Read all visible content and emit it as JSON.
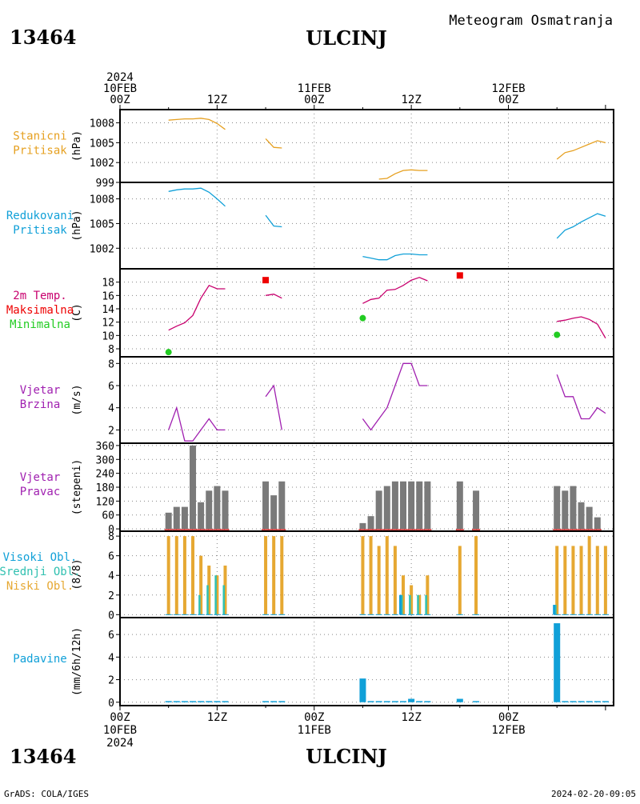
{
  "header": {
    "top_right": "Meteogram Osmatranja",
    "station_id": "13464",
    "station_name": "ULCINJ",
    "bottom_left": "GrADS: COLA/IGES",
    "bottom_right": "2024-02-20-09:05"
  },
  "time_axis": {
    "top_labels": [
      {
        "h": 0,
        "lines": [
          "2024",
          "10FEB",
          "00Z"
        ]
      },
      {
        "h": 12,
        "lines": [
          "12Z"
        ]
      },
      {
        "h": 24,
        "lines": [
          "11FEB",
          "00Z"
        ]
      },
      {
        "h": 36,
        "lines": [
          "12Z"
        ]
      },
      {
        "h": 48,
        "lines": [
          "12FEB",
          "00Z"
        ]
      }
    ],
    "bottom_labels": [
      {
        "h": 0,
        "lines": [
          "00Z",
          "10FEB",
          "2024"
        ]
      },
      {
        "h": 12,
        "lines": [
          "12Z"
        ]
      },
      {
        "h": 24,
        "lines": [
          "00Z",
          "11FEB"
        ]
      },
      {
        "h": 36,
        "lines": [
          "12Z"
        ]
      },
      {
        "h": 48,
        "lines": [
          "00Z",
          "12FEB"
        ]
      }
    ]
  },
  "colors": {
    "pressure": "#e6a020",
    "reduced": "#10a0d8",
    "temp": "#c8006e",
    "tmax": "#ee0000",
    "tmin": "#22cc22",
    "wind": "#a020b0",
    "bars": "#7a7a7a",
    "low_cloud": "#e6a832",
    "mid_cloud": "#30c0b0",
    "high_cloud": "#10a0d8",
    "precip": "#10a0d8"
  },
  "chart_data": [
    {
      "type": "line",
      "panel": "station_pressure",
      "left_labels": [
        "Stanicni",
        "Pritisak"
      ],
      "ylabel": "(hPa)",
      "yticks": [
        999,
        1002,
        1005,
        1008
      ],
      "ylim": [
        999,
        1010
      ],
      "series": [
        {
          "x": [
            6,
            7,
            8,
            9,
            10,
            11,
            12,
            13
          ],
          "y": [
            1008.4,
            1008.5,
            1008.6,
            1008.6,
            1008.7,
            1008.5,
            1007.9,
            1007.0
          ]
        },
        {
          "x": [
            18,
            19,
            20
          ],
          "y": [
            1005.6,
            1004.3,
            1004.2
          ]
        },
        {
          "x": [
            32,
            33,
            34,
            35,
            36,
            37,
            38
          ],
          "y": [
            999.5,
            999.6,
            1000.3,
            1000.8,
            1000.9,
            1000.8,
            1000.8
          ]
        },
        {
          "x": [
            54,
            55,
            56,
            57,
            58,
            59,
            60
          ],
          "y": [
            1002.5,
            1003.5,
            1003.8,
            1004.3,
            1004.8,
            1005.3,
            1005.0
          ]
        }
      ]
    },
    {
      "type": "line",
      "panel": "reduced_pressure",
      "left_labels": [
        "Redukovani",
        "Pritisak"
      ],
      "ylabel": "(hPa)",
      "yticks": [
        1002,
        1005,
        1008
      ],
      "ylim": [
        999.5,
        1010
      ],
      "series": [
        {
          "x": [
            6,
            7,
            8,
            9,
            10,
            11,
            12,
            13
          ],
          "y": [
            1008.9,
            1009.1,
            1009.2,
            1009.2,
            1009.3,
            1008.8,
            1008.0,
            1007.1
          ]
        },
        {
          "x": [
            18,
            19,
            20
          ],
          "y": [
            1006.0,
            1004.7,
            1004.6
          ]
        },
        {
          "x": [
            30,
            31,
            32,
            33,
            34,
            35,
            36,
            37,
            38
          ],
          "y": [
            1001.0,
            1000.8,
            1000.6,
            1000.6,
            1001.1,
            1001.3,
            1001.3,
            1001.2,
            1001.2
          ]
        },
        {
          "x": [
            54,
            55,
            56,
            57,
            58,
            59,
            60
          ],
          "y": [
            1003.2,
            1004.2,
            1004.6,
            1005.2,
            1005.7,
            1006.2,
            1005.9
          ]
        }
      ]
    },
    {
      "type": "line",
      "panel": "temperature",
      "left_labels": [
        "2m Temp.",
        "Maksimalna",
        "Minimalna"
      ],
      "ylabel": "(C)",
      "yticks": [
        8,
        10,
        12,
        14,
        16,
        18
      ],
      "ylim": [
        6.8,
        20
      ],
      "series": [
        {
          "x": [
            6,
            7,
            8,
            9,
            10,
            11,
            12,
            13
          ],
          "y": [
            10.8,
            11.4,
            11.9,
            13.0,
            15.6,
            17.5,
            17.0,
            17.0
          ]
        },
        {
          "x": [
            18,
            19,
            20
          ],
          "y": [
            16.0,
            16.2,
            15.6
          ]
        },
        {
          "x": [
            30,
            31,
            32,
            33,
            34,
            35,
            36,
            37,
            38
          ],
          "y": [
            14.8,
            15.4,
            15.6,
            16.8,
            16.9,
            17.5,
            18.3,
            18.7,
            18.2
          ]
        },
        {
          "x": [
            54,
            55,
            56,
            57,
            58,
            59,
            60
          ],
          "y": [
            12.1,
            12.3,
            12.6,
            12.8,
            12.4,
            11.7,
            9.6
          ]
        }
      ],
      "max_points": [
        {
          "x": 18,
          "y": 18.3
        },
        {
          "x": 42,
          "y": 19.0
        }
      ],
      "min_points": [
        {
          "x": 6,
          "y": 7.5
        },
        {
          "x": 30,
          "y": 12.6
        },
        {
          "x": 54,
          "y": 10.1
        }
      ]
    },
    {
      "type": "line",
      "panel": "wind_speed",
      "left_labels": [
        "Vjetar",
        "Brzina"
      ],
      "ylabel": "(m/s)",
      "yticks": [
        2,
        4,
        6,
        8
      ],
      "ylim": [
        0.8,
        8.6
      ],
      "series": [
        {
          "x": [
            6,
            7,
            8,
            9,
            10,
            11,
            12,
            13
          ],
          "y": [
            2,
            4,
            1,
            1,
            2,
            3,
            2,
            2
          ]
        },
        {
          "x": [
            18,
            19,
            20
          ],
          "y": [
            5,
            6,
            2
          ]
        },
        {
          "x": [
            30,
            31,
            32,
            33,
            34,
            35,
            36,
            37,
            38
          ],
          "y": [
            3,
            2,
            3,
            4,
            6,
            8,
            8,
            6,
            6
          ]
        },
        {
          "x": [
            54,
            55,
            56,
            57,
            58,
            59,
            60
          ],
          "y": [
            7,
            5,
            5,
            3,
            3,
            4,
            3.5
          ]
        }
      ]
    },
    {
      "type": "bar",
      "panel": "wind_direction",
      "left_labels": [
        "Vjetar",
        "Pravac"
      ],
      "ylabel": "(stepeni)",
      "yticks": [
        0,
        60,
        120,
        180,
        240,
        300,
        360
      ],
      "ylim": [
        -10,
        370
      ],
      "x": [
        6,
        7,
        8,
        9,
        10,
        11,
        12,
        13,
        18,
        19,
        20,
        30,
        31,
        32,
        33,
        34,
        35,
        36,
        37,
        38,
        42,
        44,
        54,
        55,
        56,
        57,
        58,
        59
      ],
      "values": [
        70,
        95,
        95,
        360,
        115,
        165,
        185,
        165,
        205,
        145,
        205,
        25,
        55,
        165,
        185,
        205,
        205,
        205,
        205,
        205,
        205,
        165,
        185,
        165,
        185,
        115,
        95,
        50
      ]
    },
    {
      "type": "bar",
      "panel": "cloud_cover",
      "left_labels": [
        "Visoki Obl.",
        "Srednji Obl.",
        "Niski Obl."
      ],
      "ylabel": "(8/8)",
      "yticks": [
        0,
        2,
        4,
        6,
        8
      ],
      "ylim": [
        -0.3,
        8.5
      ],
      "x": [
        6,
        7,
        8,
        9,
        10,
        11,
        12,
        13,
        18,
        19,
        20,
        30,
        31,
        32,
        33,
        34,
        35,
        36,
        37,
        38,
        42,
        44,
        54,
        55,
        56,
        57,
        58,
        59,
        60
      ],
      "series": [
        {
          "name": "Niski Obl.",
          "values": [
            8,
            8,
            8,
            8,
            6,
            5,
            4,
            5,
            8,
            8,
            8,
            8,
            8,
            7,
            8,
            7,
            4,
            3,
            2,
            4,
            7,
            8,
            7,
            7,
            7,
            7,
            8,
            7,
            7
          ]
        },
        {
          "name": "Srednji Obl.",
          "values": [
            0,
            0,
            0,
            0,
            2,
            3,
            4,
            3,
            0,
            0,
            0,
            0,
            0,
            0,
            0,
            0,
            2,
            2,
            2,
            2,
            0,
            0,
            1,
            0,
            0,
            0,
            0,
            0,
            0
          ]
        },
        {
          "name": "Visoki Obl.",
          "values": [
            0,
            0,
            0,
            0,
            0,
            0,
            0,
            0,
            0,
            0,
            0,
            0,
            0,
            0,
            0,
            0,
            2,
            0,
            0,
            0,
            0,
            0,
            1,
            0,
            0,
            0,
            0,
            0,
            0
          ]
        }
      ]
    },
    {
      "type": "bar",
      "panel": "precipitation",
      "left_labels": [
        "Padavine"
      ],
      "ylabel": "(mm/6h/12h)",
      "yticks": [
        0,
        2,
        4,
        6
      ],
      "ylim": [
        -0.3,
        7.5
      ],
      "x": [
        6,
        7,
        8,
        9,
        10,
        11,
        12,
        13,
        18,
        19,
        20,
        30,
        31,
        32,
        33,
        34,
        35,
        36,
        37,
        38,
        42,
        44,
        54,
        55,
        56,
        57,
        58,
        59,
        60
      ],
      "values": [
        0.1,
        0.1,
        0.1,
        0.1,
        0.1,
        0.1,
        0.1,
        0.1,
        0.1,
        0.1,
        0.1,
        2.1,
        0.1,
        0.1,
        0.1,
        0.1,
        0.1,
        0.3,
        0.1,
        0.1,
        0.3,
        0.1,
        7.0,
        0.1,
        0.1,
        0.1,
        0.1,
        0.1,
        0.1
      ]
    }
  ]
}
